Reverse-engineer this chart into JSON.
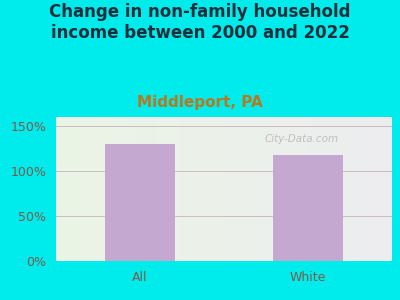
{
  "title": "Change in non-family household\nincome between 2000 and 2022",
  "subtitle": "Middleport, PA",
  "categories": [
    "All",
    "White"
  ],
  "values": [
    130,
    118
  ],
  "bar_color": "#C4A8D0",
  "title_color": "#1a2e3b",
  "subtitle_color": "#b87820",
  "tick_color": "#7a5a4a",
  "background_color": "#00ECEC",
  "ylim": [
    0,
    160
  ],
  "yticks": [
    0,
    50,
    100,
    150
  ],
  "ytick_labels": [
    "0%",
    "50%",
    "100%",
    "150%"
  ],
  "grid_color": "#c8b8b8",
  "title_fontsize": 12,
  "subtitle_fontsize": 11,
  "tick_fontsize": 9,
  "watermark": "City-Data.com"
}
